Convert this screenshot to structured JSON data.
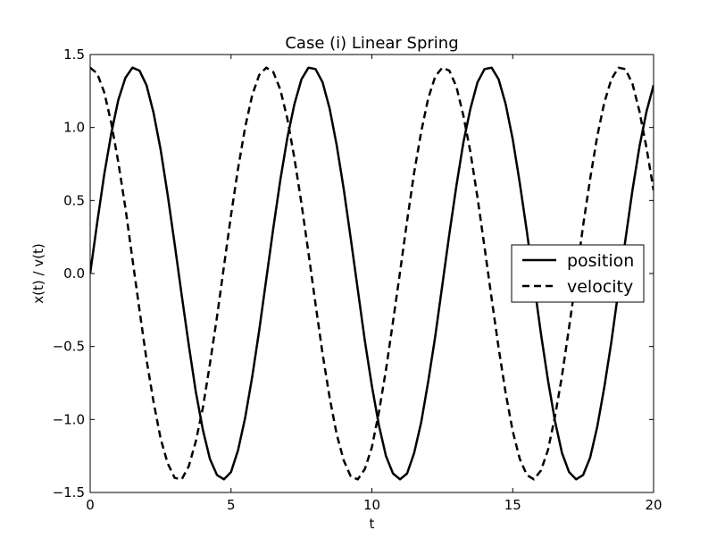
{
  "chart_data": {
    "type": "line",
    "title": "Case (i) Linear Spring",
    "xlabel": "t",
    "ylabel": "x(t) / v(t)",
    "xlim": [
      0,
      20
    ],
    "ylim": [
      -1.5,
      1.5
    ],
    "xticks": [
      0,
      5,
      10,
      15,
      20
    ],
    "xtick_labels": [
      "0",
      "5",
      "10",
      "15",
      "20"
    ],
    "yticks": [
      -1.5,
      -1.0,
      -0.5,
      0.0,
      0.5,
      1.0,
      1.5
    ],
    "ytick_labels": [
      "−1.5",
      "−1.0",
      "−0.5",
      "0.0",
      "0.5",
      "1.0",
      "1.5"
    ],
    "grid": false,
    "legend": {
      "location": "center-right"
    },
    "series": [
      {
        "name": "position",
        "color": "#000000",
        "style": "solid",
        "x": [
          0.0,
          0.25,
          0.5,
          0.75,
          1.0,
          1.25,
          1.5,
          1.75,
          2.0,
          2.25,
          2.5,
          2.75,
          3.0,
          3.25,
          3.5,
          3.75,
          4.0,
          4.25,
          4.5,
          4.75,
          5.0,
          5.25,
          5.5,
          5.75,
          6.0,
          6.25,
          6.5,
          6.75,
          7.0,
          7.25,
          7.5,
          7.75,
          8.0,
          8.25,
          8.5,
          8.75,
          9.0,
          9.25,
          9.5,
          9.75,
          10.0,
          10.25,
          10.5,
          10.75,
          11.0,
          11.25,
          11.5,
          11.75,
          12.0,
          12.25,
          12.5,
          12.75,
          13.0,
          13.25,
          13.5,
          13.75,
          14.0,
          14.25,
          14.5,
          14.75,
          15.0,
          15.25,
          15.5,
          15.75,
          16.0,
          16.25,
          16.5,
          16.75,
          17.0,
          17.25,
          17.5,
          17.75,
          18.0,
          18.25,
          18.5,
          18.75,
          19.0,
          19.25,
          19.5,
          19.75,
          20.0
        ],
        "y": [
          0.0,
          0.35,
          0.68,
          0.96,
          1.19,
          1.34,
          1.41,
          1.39,
          1.29,
          1.1,
          0.85,
          0.54,
          0.2,
          -0.15,
          -0.49,
          -0.81,
          -1.07,
          -1.27,
          -1.38,
          -1.41,
          -1.36,
          -1.21,
          -0.99,
          -0.71,
          -0.39,
          -0.04,
          0.31,
          0.64,
          0.93,
          1.16,
          1.33,
          1.41,
          1.4,
          1.31,
          1.13,
          0.88,
          0.58,
          0.24,
          -0.11,
          -0.46,
          -0.77,
          -1.04,
          -1.25,
          -1.37,
          -1.41,
          -1.37,
          -1.23,
          -1.02,
          -0.74,
          -0.43,
          -0.08,
          0.27,
          0.6,
          0.9,
          1.13,
          1.31,
          1.4,
          1.41,
          1.33,
          1.16,
          0.92,
          0.62,
          0.29,
          -0.06,
          -0.41,
          -0.73,
          -1.01,
          -1.23,
          -1.36,
          -1.41,
          -1.38,
          -1.26,
          -1.05,
          -0.78,
          -0.47,
          -0.12,
          0.23,
          0.57,
          0.87,
          1.11,
          1.29
        ]
      },
      {
        "name": "velocity",
        "color": "#000000",
        "style": "dashed",
        "x": [
          0.0,
          0.25,
          0.5,
          0.75,
          1.0,
          1.25,
          1.5,
          1.75,
          2.0,
          2.25,
          2.5,
          2.75,
          3.0,
          3.25,
          3.5,
          3.75,
          4.0,
          4.25,
          4.5,
          4.75,
          5.0,
          5.25,
          5.5,
          5.75,
          6.0,
          6.25,
          6.5,
          6.75,
          7.0,
          7.25,
          7.5,
          7.75,
          8.0,
          8.25,
          8.5,
          8.75,
          9.0,
          9.25,
          9.5,
          9.75,
          10.0,
          10.25,
          10.5,
          10.75,
          11.0,
          11.25,
          11.5,
          11.75,
          12.0,
          12.25,
          12.5,
          12.75,
          13.0,
          13.25,
          13.5,
          13.75,
          14.0,
          14.25,
          14.5,
          14.75,
          15.0,
          15.25,
          15.5,
          15.75,
          16.0,
          16.25,
          16.5,
          16.75,
          17.0,
          17.25,
          17.5,
          17.75,
          18.0,
          18.25,
          18.5,
          18.75,
          19.0,
          19.25,
          19.5,
          19.75,
          20.0
        ],
        "y": [
          1.41,
          1.37,
          1.24,
          1.03,
          0.76,
          0.45,
          0.1,
          -0.25,
          -0.59,
          -0.88,
          -1.13,
          -1.3,
          -1.4,
          -1.41,
          -1.32,
          -1.15,
          -0.92,
          -0.62,
          -0.3,
          0.05,
          0.4,
          0.72,
          1.0,
          1.22,
          1.36,
          1.41,
          1.38,
          1.26,
          1.06,
          0.79,
          0.48,
          0.14,
          -0.21,
          -0.55,
          -0.85,
          -1.1,
          -1.28,
          -1.39,
          -1.41,
          -1.34,
          -1.19,
          -0.95,
          -0.66,
          -0.33,
          0.01,
          0.36,
          0.69,
          0.97,
          1.2,
          1.35,
          1.41,
          1.39,
          1.28,
          1.08,
          0.83,
          0.52,
          0.18,
          -0.17,
          -0.51,
          -0.82,
          -1.08,
          -1.27,
          -1.38,
          -1.41,
          -1.35,
          -1.21,
          -0.98,
          -0.7,
          -0.37,
          -0.03,
          0.33,
          0.65,
          0.94,
          1.17,
          1.33,
          1.41,
          1.4,
          1.3,
          1.11,
          0.86,
          0.57
        ]
      }
    ]
  }
}
